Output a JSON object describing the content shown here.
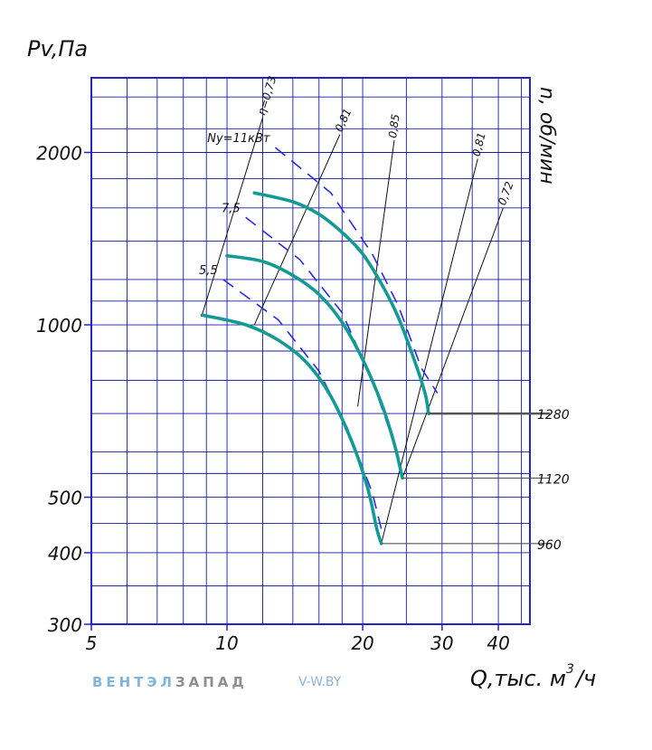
{
  "chart_data": {
    "type": "line",
    "ylabel": "Pv,Па",
    "xlabel": "Q,тыс. м",
    "xlabel_sup": "3",
    "xlabel_tail": "/ч",
    "right_label": "n, об/мин",
    "x_scale": "log",
    "y_scale": "log",
    "xlim": [
      5,
      47
    ],
    "ylim": [
      300,
      2700
    ],
    "x_ticks": [
      5,
      10,
      20,
      30,
      40
    ],
    "y_ticks": [
      300,
      400,
      500,
      1000,
      2000
    ],
    "grid": true,
    "fan_curves": [
      {
        "rpm": "960",
        "points": [
          [
            8.8,
            1040
          ],
          [
            11,
            1000
          ],
          [
            13,
            940
          ],
          [
            15,
            860
          ],
          [
            17,
            750
          ],
          [
            19,
            620
          ],
          [
            20.5,
            520
          ],
          [
            21.5,
            440
          ],
          [
            22,
            415
          ]
        ]
      },
      {
        "rpm": "1120",
        "points": [
          [
            10,
            1320
          ],
          [
            12,
            1290
          ],
          [
            14,
            1220
          ],
          [
            16,
            1130
          ],
          [
            18,
            1010
          ],
          [
            20,
            870
          ],
          [
            22,
            730
          ],
          [
            23.5,
            620
          ],
          [
            24.5,
            540
          ]
        ]
      },
      {
        "rpm": "1280",
        "points": [
          [
            11.5,
            1700
          ],
          [
            14,
            1640
          ],
          [
            16,
            1560
          ],
          [
            18,
            1450
          ],
          [
            20,
            1330
          ],
          [
            22,
            1180
          ],
          [
            24,
            1030
          ],
          [
            26,
            870
          ],
          [
            27.5,
            760
          ],
          [
            28,
            700
          ]
        ]
      }
    ],
    "power_lines": [
      {
        "label": "5,5",
        "points": [
          [
            9.8,
            1200
          ],
          [
            13,
            1020
          ],
          [
            16,
            830
          ],
          [
            18.5,
            660
          ],
          [
            21,
            510
          ],
          [
            22,
            440
          ]
        ]
      },
      {
        "label": "7,5",
        "points": [
          [
            11,
            1540
          ],
          [
            14.5,
            1300
          ],
          [
            18,
            1050
          ],
          [
            21,
            800
          ],
          [
            23.5,
            620
          ],
          [
            24.5,
            540
          ]
        ]
      },
      {
        "label": "Ny=11кВт",
        "points": [
          [
            12.8,
            2040
          ],
          [
            17,
            1700
          ],
          [
            21,
            1330
          ],
          [
            24,
            1080
          ],
          [
            27,
            840
          ],
          [
            29.3,
            760
          ]
        ]
      }
    ],
    "efficiency_lines": [
      {
        "label": "η=0,73",
        "points": [
          [
            8.8,
            1040
          ],
          [
            12,
            2300
          ]
        ]
      },
      {
        "label": "0,81",
        "points": [
          [
            11.5,
            1000
          ],
          [
            17.8,
            2150
          ]
        ]
      },
      {
        "label": "0,85",
        "points": [
          [
            19.5,
            720
          ],
          [
            23.5,
            2100
          ]
        ]
      },
      {
        "label": "0,81",
        "points": [
          [
            22,
            415
          ],
          [
            36,
            1950
          ]
        ]
      },
      {
        "label": "0,72",
        "points": [
          [
            24.5,
            540
          ],
          [
            41,
            1600
          ]
        ]
      }
    ],
    "rpm_lines": [
      {
        "label": "1280",
        "y": 700,
        "x_from": 28
      },
      {
        "label": "1120",
        "y": 540,
        "x_from": 24.5
      },
      {
        "label": "960",
        "y": 415,
        "x_from": 22
      }
    ],
    "colors": {
      "grid": "#1a1aa6",
      "frame": "#2323c8",
      "fan_curve": "#149a94",
      "power": "#2a2ae0",
      "efficiency": "#111111",
      "rpm": "#555555"
    }
  },
  "branding": {
    "part1": "ВЕНТЭЛ",
    "part2": "ЗАПАД",
    "site": "V-W.BY"
  }
}
